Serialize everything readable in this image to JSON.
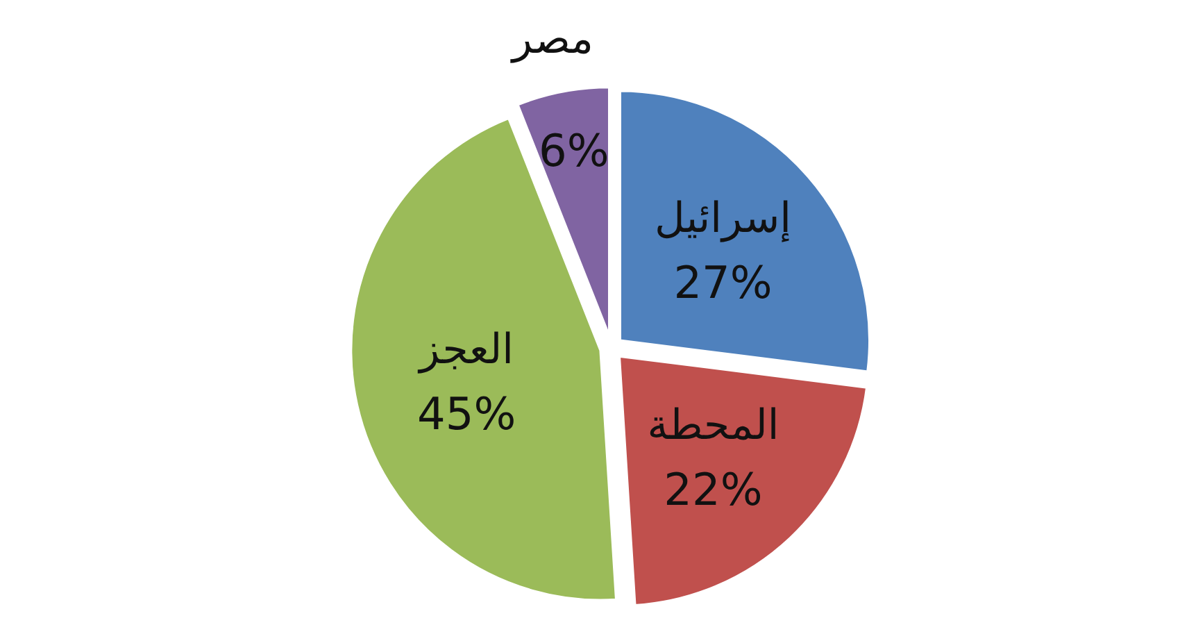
{
  "chart_data": {
    "type": "pie",
    "categories": [
      "إسرائيل",
      "المحطة",
      "العجز",
      "مصر"
    ],
    "values": [
      27,
      22,
      45,
      6
    ],
    "colors": [
      "#4f81bd",
      "#c0504d",
      "#9bbb59",
      "#8064a2"
    ],
    "value_labels": [
      "27%",
      "22%",
      "45%",
      "6%"
    ]
  }
}
